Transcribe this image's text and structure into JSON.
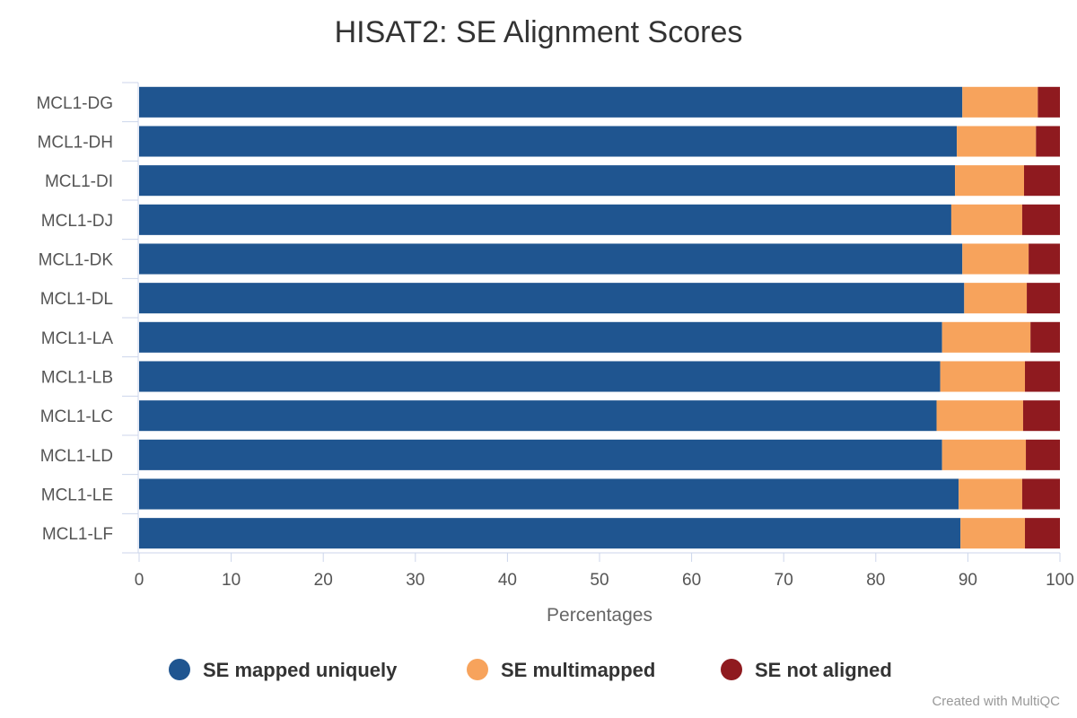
{
  "chart_data": {
    "type": "bar",
    "orientation": "horizontal",
    "stacked": true,
    "title": "HISAT2: SE Alignment Scores",
    "xlabel": "Percentages",
    "ylabel": "",
    "xlim": [
      0,
      100
    ],
    "x_ticks": [
      "0",
      "10",
      "20",
      "30",
      "40",
      "50",
      "60",
      "70",
      "80",
      "90",
      "100"
    ],
    "categories": [
      "MCL1-DG",
      "MCL1-DH",
      "MCL1-DI",
      "MCL1-DJ",
      "MCL1-DK",
      "MCL1-DL",
      "MCL1-LA",
      "MCL1-LB",
      "MCL1-LC",
      "MCL1-LD",
      "MCL1-LE",
      "MCL1-LF"
    ],
    "series": [
      {
        "name": "SE mapped uniquely",
        "color": "#1f5590",
        "values": [
          89.4,
          88.8,
          88.6,
          88.2,
          89.4,
          89.6,
          87.2,
          87.0,
          86.6,
          87.2,
          89.0,
          89.2
        ]
      },
      {
        "name": "SE multimapped",
        "color": "#f7a35c",
        "values": [
          8.2,
          8.6,
          7.5,
          7.7,
          7.2,
          6.8,
          9.6,
          9.2,
          9.4,
          9.1,
          6.9,
          7.0
        ]
      },
      {
        "name": "SE not aligned",
        "color": "#8f1a1f",
        "values": [
          2.4,
          2.6,
          3.9,
          4.1,
          3.4,
          3.6,
          3.2,
          3.8,
          4.0,
          3.7,
          4.1,
          3.8
        ]
      }
    ],
    "legend_position": "bottom",
    "grid": false
  },
  "credit": "Created with MultiQC"
}
